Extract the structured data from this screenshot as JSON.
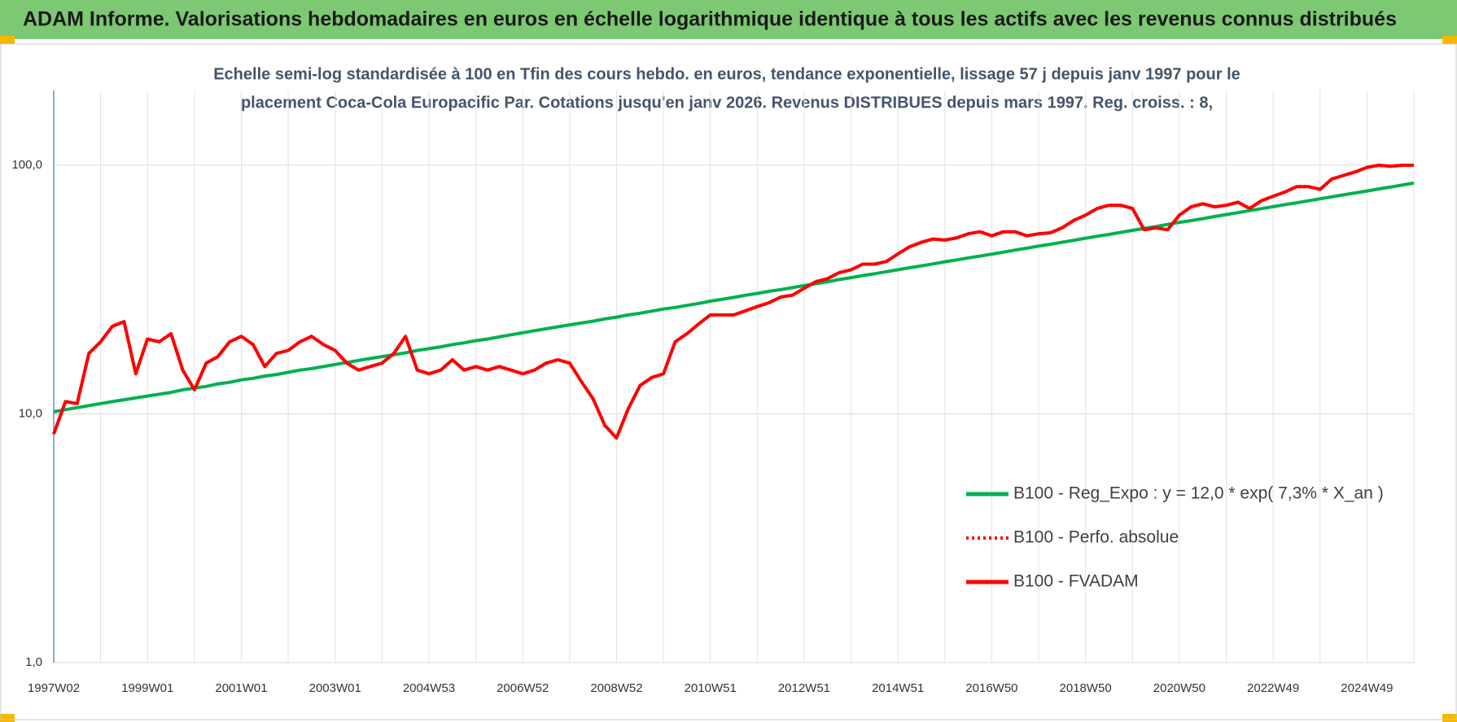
{
  "header": {
    "title": "ADAM Informe. Valorisations hebdomadaires en euros en échelle logarithmique identique à tous les actifs avec les revenus connus distribués"
  },
  "chart_data": {
    "type": "line",
    "subtitle": [
      "Echelle semi-log standardisée à 100 en Tfin des cours hebdo. en euros, tendance exponentielle, lissage 57 j depuis janv 1997 pour le",
      "placement Coca-Cola Europacific Par. Cotations jusqu'en janv 2026.  Revenus DISTRIBUES depuis mars 1997. Reg. croiss. : 8,"
    ],
    "categories": [
      "1997W02",
      null,
      null,
      null,
      null,
      null,
      null,
      null,
      "1999W01",
      null,
      null,
      null,
      null,
      null,
      null,
      null,
      "2001W01",
      null,
      null,
      null,
      null,
      null,
      null,
      null,
      "2003W01",
      null,
      null,
      null,
      null,
      null,
      null,
      null,
      "2004W53",
      null,
      null,
      null,
      null,
      null,
      null,
      null,
      "2006W52",
      null,
      null,
      null,
      null,
      null,
      null,
      null,
      "2008W52",
      null,
      null,
      null,
      null,
      null,
      null,
      null,
      "2010W51",
      null,
      null,
      null,
      null,
      null,
      null,
      null,
      "2012W51",
      null,
      null,
      null,
      null,
      null,
      null,
      null,
      "2014W51",
      null,
      null,
      null,
      null,
      null,
      null,
      null,
      "2016W50",
      null,
      null,
      null,
      null,
      null,
      null,
      null,
      "2018W50",
      null,
      null,
      null,
      null,
      null,
      null,
      null,
      "2020W50",
      null,
      null,
      null,
      null,
      null,
      null,
      null,
      "2022W49",
      null,
      null,
      null,
      null,
      null,
      null,
      null,
      "2024W49",
      null,
      null,
      null,
      null
    ],
    "series": [
      {
        "name": "B100 - Reg_Expo : y = 12,0 * exp( 7,3% *  X_an )",
        "color": "#00b050",
        "dash": "solid",
        "values": [
          10.2,
          10.4,
          10.6,
          10.8,
          11.0,
          11.2,
          11.4,
          11.6,
          11.8,
          12.0,
          12.2,
          12.5,
          12.7,
          12.9,
          13.2,
          13.4,
          13.7,
          13.9,
          14.2,
          14.4,
          14.7,
          15.0,
          15.2,
          15.5,
          15.8,
          16.1,
          16.4,
          16.7,
          17.0,
          17.3,
          17.6,
          18.0,
          18.3,
          18.6,
          19.0,
          19.3,
          19.7,
          20.0,
          20.4,
          20.8,
          21.2,
          21.6,
          22.0,
          22.4,
          22.8,
          23.2,
          23.6,
          24.1,
          24.5,
          25.0,
          25.4,
          25.9,
          26.4,
          26.8,
          27.3,
          27.8,
          28.4,
          28.9,
          29.4,
          30.0,
          30.5,
          31.1,
          31.6,
          32.2,
          32.8,
          33.4,
          34.0,
          34.7,
          35.3,
          36.0,
          36.6,
          37.3,
          38.0,
          38.7,
          39.4,
          40.1,
          40.9,
          41.6,
          42.4,
          43.1,
          43.9,
          44.7,
          45.6,
          46.4,
          47.3,
          48.1,
          49.0,
          49.9,
          50.9,
          51.8,
          52.7,
          53.7,
          54.7,
          55.7,
          56.7,
          57.8,
          58.9,
          59.9,
          61.0,
          62.2,
          63.3,
          64.5,
          65.7,
          66.9,
          68.1,
          69.4,
          70.6,
          71.9,
          73.3,
          74.6,
          76.0,
          77.4,
          78.8,
          80.3,
          81.7,
          83.2,
          84.8
        ]
      },
      {
        "name": "B100 - Perfo. absolue",
        "color": "#ff0000",
        "dash": "dotted",
        "values": [
          8.3,
          11.2,
          11.0,
          17.5,
          19.5,
          22.5,
          23.5,
          14.5,
          20.0,
          19.5,
          21.0,
          15.0,
          12.5,
          16.0,
          17.0,
          19.5,
          20.5,
          19.0,
          15.5,
          17.5,
          18.0,
          19.5,
          20.5,
          19.0,
          18.0,
          16.0,
          15.0,
          15.5,
          16.0,
          17.5,
          20.5,
          15.0,
          14.5,
          15.0,
          16.5,
          15.0,
          15.5,
          15.0,
          15.5,
          15.0,
          14.5,
          15.0,
          16.0,
          16.5,
          16.0,
          13.5,
          11.5,
          9.0,
          8.0,
          10.5,
          13.0,
          14.0,
          14.5,
          19.5,
          21.0,
          23.0,
          25.0,
          25.0,
          25.0,
          26.0,
          27.0,
          28.0,
          29.5,
          30.0,
          32.0,
          34.0,
          35.0,
          37.0,
          38.0,
          40.0,
          40.0,
          41.0,
          44.0,
          47.0,
          49.0,
          50.5,
          50.0,
          51.0,
          53.0,
          54.0,
          52.0,
          54.0,
          54.0,
          52.0,
          53.0,
          53.5,
          56.0,
          60.0,
          63.0,
          67.0,
          69.0,
          69.0,
          67.0,
          55.0,
          56.0,
          55.0,
          63.0,
          68.0,
          70.0,
          68.0,
          69.0,
          71.0,
          67.0,
          72.0,
          75.0,
          78.0,
          82.0,
          82.0,
          80.0,
          88.0,
          91.0,
          94.0,
          98.0,
          100.0,
          99.0,
          100.0,
          100.0
        ]
      },
      {
        "name": "B100 - FVADAM",
        "color": "#ff0000",
        "dash": "solid",
        "values": [
          8.3,
          11.2,
          11.0,
          17.5,
          19.5,
          22.5,
          23.5,
          14.5,
          20.0,
          19.5,
          21.0,
          15.0,
          12.5,
          16.0,
          17.0,
          19.5,
          20.5,
          19.0,
          15.5,
          17.5,
          18.0,
          19.5,
          20.5,
          19.0,
          18.0,
          16.0,
          15.0,
          15.5,
          16.0,
          17.5,
          20.5,
          15.0,
          14.5,
          15.0,
          16.5,
          15.0,
          15.5,
          15.0,
          15.5,
          15.0,
          14.5,
          15.0,
          16.0,
          16.5,
          16.0,
          13.5,
          11.5,
          9.0,
          8.0,
          10.5,
          13.0,
          14.0,
          14.5,
          19.5,
          21.0,
          23.0,
          25.0,
          25.0,
          25.0,
          26.0,
          27.0,
          28.0,
          29.5,
          30.0,
          32.0,
          34.0,
          35.0,
          37.0,
          38.0,
          40.0,
          40.0,
          41.0,
          44.0,
          47.0,
          49.0,
          50.5,
          50.0,
          51.0,
          53.0,
          54.0,
          52.0,
          54.0,
          54.0,
          52.0,
          53.0,
          53.5,
          56.0,
          60.0,
          63.0,
          67.0,
          69.0,
          69.0,
          67.0,
          55.0,
          56.0,
          55.0,
          63.0,
          68.0,
          70.0,
          68.0,
          69.0,
          71.0,
          67.0,
          72.0,
          75.0,
          78.0,
          82.0,
          82.0,
          80.0,
          88.0,
          91.0,
          94.0,
          98.0,
          100.0,
          99.0,
          100.0,
          100.0
        ]
      }
    ],
    "log_scale": true,
    "ylim": [
      1,
      200
    ],
    "yticks": [
      {
        "value": 1,
        "label": "1,0"
      },
      {
        "value": 10,
        "label": "10,0"
      },
      {
        "value": 100,
        "label": "100,0"
      }
    ],
    "grid": true,
    "legend": "right"
  }
}
